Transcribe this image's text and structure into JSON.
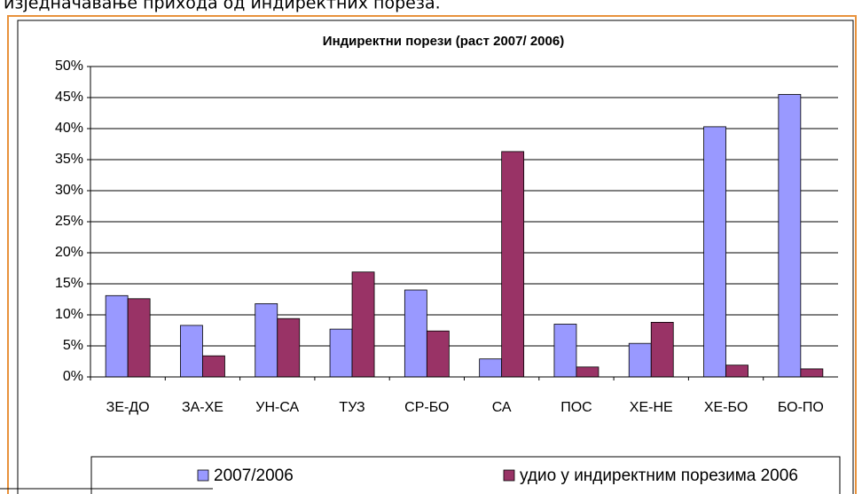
{
  "page_text": "изједначавање прихода од индиректних пореза.",
  "chart_data": {
    "type": "bar",
    "title": "Индиректни порези (раст 2007/ 2006)",
    "categories": [
      "ЗЕ-ДО",
      "ЗА-ХЕ",
      "УН-СА",
      "ТУЗ",
      "СР-БО",
      "СА",
      "ПОС",
      "ХЕ-НЕ",
      "ХЕ-БО",
      "БО-ПО"
    ],
    "series": [
      {
        "name": "2007/2006",
        "color": "#9999ff",
        "values": [
          13.1,
          8.3,
          11.8,
          7.7,
          14.0,
          2.9,
          8.5,
          5.4,
          40.3,
          45.5
        ]
      },
      {
        "name": "удио у индиректним порезима 2006",
        "color": "#993366",
        "values": [
          12.6,
          3.4,
          9.4,
          16.9,
          7.4,
          36.3,
          1.6,
          8.8,
          1.9,
          1.3
        ]
      }
    ],
    "ylim": [
      0,
      50
    ],
    "yticks": [
      {
        "value": 0,
        "label": "0%"
      },
      {
        "value": 5,
        "label": "5%"
      },
      {
        "value": 10,
        "label": "10%"
      },
      {
        "value": 15,
        "label": "15%"
      },
      {
        "value": 20,
        "label": "20%"
      },
      {
        "value": 25,
        "label": "25%"
      },
      {
        "value": 30,
        "label": "30%"
      },
      {
        "value": 35,
        "label": "35%"
      },
      {
        "value": 40,
        "label": "40%"
      },
      {
        "value": 45,
        "label": "45%"
      },
      {
        "value": 50,
        "label": "50%"
      }
    ],
    "grid": true,
    "legend": "bottom"
  }
}
